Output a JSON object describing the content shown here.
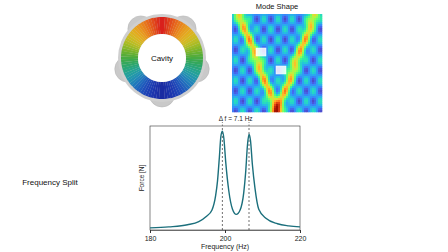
{
  "figure": {
    "cavity_label": "Cavity",
    "mode_shape_title": "Mode Shape",
    "row_label": "Frequency Split"
  },
  "chart_data": {
    "type": "line",
    "x_label": "Frequency (Hz)",
    "y_label": "Force [N]",
    "xlim": [
      180,
      220
    ],
    "xticks": [
      180,
      200,
      220
    ],
    "ylim": [
      0,
      1
    ],
    "tick_labels": "x",
    "grid": false,
    "annotation": "Δ f = 7.1 Hz",
    "peaks": [
      199.3,
      206.4
    ],
    "x": [
      180,
      185,
      190,
      193,
      195,
      196.5,
      197.5,
      198,
      198.5,
      198.9,
      199.3,
      199.7,
      200.2,
      201,
      202,
      203,
      204,
      205,
      205.5,
      206,
      206.4,
      206.8,
      207.3,
      208,
      209,
      211,
      214,
      217,
      220
    ],
    "series": [
      {
        "color": "#1b6f7c",
        "values": [
          0.02,
          0.03,
          0.05,
          0.08,
          0.13,
          0.19,
          0.33,
          0.47,
          0.7,
          0.9,
          0.95,
          0.88,
          0.65,
          0.38,
          0.2,
          0.15,
          0.19,
          0.36,
          0.55,
          0.82,
          0.92,
          0.86,
          0.63,
          0.4,
          0.2,
          0.11,
          0.06,
          0.04,
          0.03
        ]
      }
    ]
  }
}
